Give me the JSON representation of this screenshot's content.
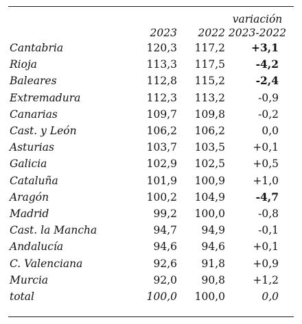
{
  "table": {
    "headers": {
      "region": "",
      "y2023": "2023",
      "y2022": "2022",
      "var_line1": "variación",
      "var_line2": "2023-2022"
    },
    "rows": [
      {
        "region": "Cantabria",
        "v2023": "120,3",
        "v2022": "117,2",
        "var": "+3,1",
        "var_bold": true
      },
      {
        "region": "Rioja",
        "v2023": "113,3",
        "v2022": "117,5",
        "var": "-4,2",
        "var_bold": true
      },
      {
        "region": "Baleares",
        "v2023": "112,8",
        "v2022": "115,2",
        "var": "-2,4",
        "var_bold": true
      },
      {
        "region": "Extremadura",
        "v2023": "112,3",
        "v2022": "113,2",
        "var": "-0,9",
        "var_bold": false
      },
      {
        "region": "Canarias",
        "v2023": "109,7",
        "v2022": "109,8",
        "var": "-0,2",
        "var_bold": false
      },
      {
        "region": "Cast. y León",
        "v2023": "106,2",
        "v2022": "106,2",
        "var": "0,0",
        "var_bold": false
      },
      {
        "region": "Asturias",
        "v2023": "103,7",
        "v2022": "103,5",
        "var": "+0,1",
        "var_bold": false
      },
      {
        "region": "Galicia",
        "v2023": "102,9",
        "v2022": "102,5",
        "var": "+0,5",
        "var_bold": false
      },
      {
        "region": "Cataluña",
        "v2023": "101,9",
        "v2022": "100,9",
        "var": "+1,0",
        "var_bold": false
      },
      {
        "region": "Aragón",
        "v2023": "100,2",
        "v2022": "104,9",
        "var": "-4,7",
        "var_bold": true
      },
      {
        "region": "Madrid",
        "v2023": "99,2",
        "v2022": "100,0",
        "var": "-0,8",
        "var_bold": false
      },
      {
        "region": "Cast. la Mancha",
        "v2023": "94,7",
        "v2022": "94,9",
        "var": "-0,1",
        "var_bold": false
      },
      {
        "region": "Andalucía",
        "v2023": "94,6",
        "v2022": "94,6",
        "var": "+0,1",
        "var_bold": false
      },
      {
        "region": "C. Valenciana",
        "v2023": "92,6",
        "v2022": "91,8",
        "var": "+0,9",
        "var_bold": false
      },
      {
        "region": "Murcia",
        "v2023": "92,0",
        "v2022": "90,8",
        "var": "+1,2",
        "var_bold": false
      }
    ],
    "total": {
      "region": "total",
      "v2023": "100,0",
      "v2022": "100,0",
      "var": "0,0"
    }
  }
}
